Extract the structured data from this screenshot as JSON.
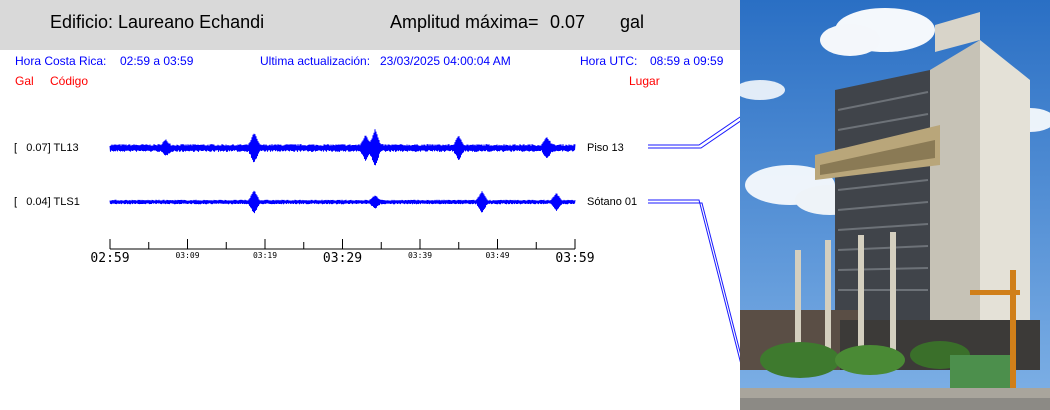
{
  "header": {
    "building_label": "Edificio: Laureano Echandi",
    "amplitude_label": "Amplitud máxima=",
    "amplitude_value": "0.07",
    "amplitude_unit": "gal"
  },
  "info": {
    "local_time_label": "Hora Costa Rica:",
    "local_time_value": "02:59 a 03:59",
    "update_label": "Ultima actualización:",
    "update_value": "23/03/2025 04:00:04 AM",
    "utc_label": "Hora UTC:",
    "utc_value": "08:59 a 09:59"
  },
  "columns": {
    "gal": "Gal",
    "code": "Código",
    "place": "Lugar"
  },
  "colors": {
    "trace": "#0000ff",
    "info_text": "#0000ff",
    "column_text": "#ff0000",
    "header_bg": "#d9d9d9"
  },
  "chart_data": {
    "type": "line",
    "title": "",
    "xlabel": "",
    "ylabel": "",
    "x_unit": "time",
    "xlim": [
      "02:59",
      "03:59"
    ],
    "tick_labels_major": [
      "02:59",
      "03:29",
      "03:59"
    ],
    "tick_labels_minor": [
      "03:09",
      "03:19",
      "03:39",
      "03:49"
    ],
    "series": [
      {
        "name": "TL13",
        "amplitude": "0.07",
        "place": "Piso 13",
        "bracket_label": "[   0.07] TL13"
      },
      {
        "name": "TLS1",
        "amplitude": "0.04",
        "place": "Sótano 01",
        "bracket_label": "[   0.04] TLS1"
      }
    ],
    "grid": false
  }
}
